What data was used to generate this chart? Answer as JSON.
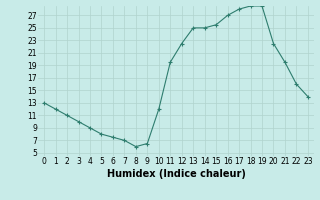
{
  "x": [
    0,
    1,
    2,
    3,
    4,
    5,
    6,
    7,
    8,
    9,
    10,
    11,
    12,
    13,
    14,
    15,
    16,
    17,
    18,
    19,
    20,
    21,
    22,
    23
  ],
  "y": [
    13,
    12,
    11,
    10,
    9,
    8,
    7.5,
    7,
    6,
    6.5,
    12,
    19.5,
    22.5,
    25,
    25,
    25.5,
    27,
    28,
    28.5,
    28.5,
    22.5,
    19.5,
    16,
    14
  ],
  "line_color": "#2e7d6e",
  "marker": "+",
  "bg_color": "#c8ebe8",
  "grid_color": "#b0d4ce",
  "xlabel": "Humidex (Indice chaleur)",
  "xlim": [
    -0.5,
    23.5
  ],
  "ylim": [
    4.5,
    28.5
  ],
  "yticks": [
    5,
    7,
    9,
    11,
    13,
    15,
    17,
    19,
    21,
    23,
    25,
    27
  ],
  "xticks": [
    0,
    1,
    2,
    3,
    4,
    5,
    6,
    7,
    8,
    9,
    10,
    11,
    12,
    13,
    14,
    15,
    16,
    17,
    18,
    19,
    20,
    21,
    22,
    23
  ],
  "tick_fontsize": 5.5,
  "xlabel_fontsize": 7
}
